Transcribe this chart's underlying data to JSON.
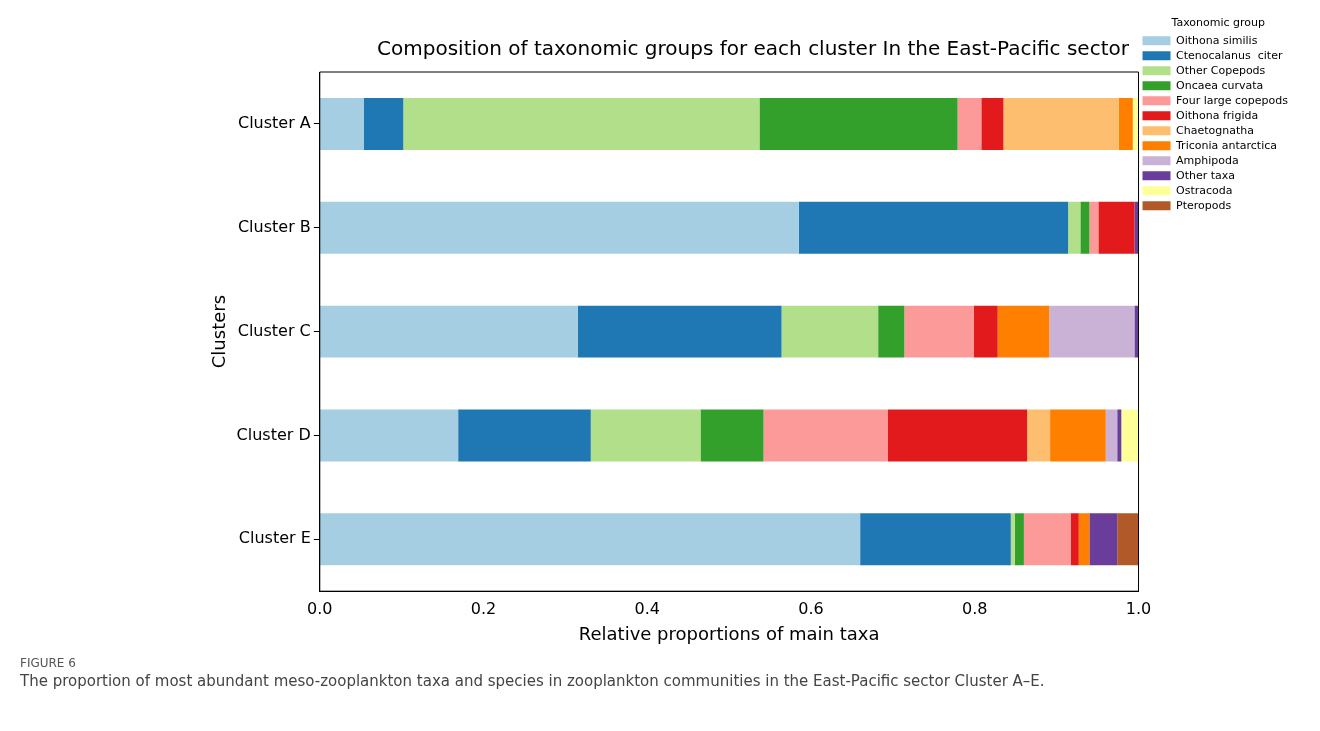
{
  "chart_data": {
    "type": "bar",
    "orientation": "horizontal",
    "stacked": true,
    "title": "Composition of taxonomic groups for each cluster In the East-Pacific sector",
    "xlabel": "Relative proportions of main taxa",
    "ylabel": "Clusters",
    "legend_title": "Taxonomic group",
    "legend": "top right",
    "grid": false,
    "categories": [
      "Cluster A",
      "Cluster B",
      "Cluster C",
      "Cluster D",
      "Cluster E"
    ],
    "xlim": [
      0,
      1
    ],
    "xticks": [
      {
        "value": 0,
        "label": "0.0"
      },
      0.2,
      0.4,
      0.6,
      0.8,
      {
        "value": 1,
        "label": "1.0"
      }
    ],
    "series": [
      {
        "name": "Oithona similis",
        "color": "#a6cee3",
        "values": [
          0.054,
          0.585,
          0.315,
          0.169,
          0.66
        ]
      },
      {
        "name": "Ctenocalanus  citer",
        "color": "#1f78b4",
        "values": [
          0.048,
          0.329,
          0.249,
          0.162,
          0.184
        ]
      },
      {
        "name": "Other Copepods",
        "color": "#b2df8a",
        "values": [
          0.435,
          0.015,
          0.118,
          0.134,
          0.005
        ]
      },
      {
        "name": "Oncaea curvata",
        "color": "#33a02c",
        "values": [
          0.242,
          0.011,
          0.032,
          0.077,
          0.011
        ]
      },
      {
        "name": "Four large copepods",
        "color": "#fb9a99",
        "values": [
          0.029,
          0.011,
          0.085,
          0.152,
          0.057
        ]
      },
      {
        "name": "Oithona frigida",
        "color": "#e31a1c",
        "values": [
          0.027,
          0.044,
          0.029,
          0.17,
          0.01
        ]
      },
      {
        "name": "Chaetognatha",
        "color": "#fdbf6f",
        "values": [
          0.141,
          0,
          0,
          0.028,
          0
        ]
      },
      {
        "name": "Triconia antarctica",
        "color": "#ff7f00",
        "values": [
          0.017,
          0,
          0.063,
          0.068,
          0.013
        ]
      },
      {
        "name": "Amphipoda",
        "color": "#cab2d6",
        "values": [
          0,
          0,
          0.104,
          0.014,
          0
        ]
      },
      {
        "name": "Other taxa",
        "color": "#6a3d9a",
        "values": [
          0,
          0.005,
          0.005,
          0.005,
          0.034
        ]
      },
      {
        "name": "Ostracoda",
        "color": "#ffff99",
        "values": [
          0.007,
          0,
          0,
          0.021,
          0
        ]
      },
      {
        "name": "Pteropods",
        "color": "#b15928",
        "values": [
          0,
          0,
          0,
          0,
          0.026
        ]
      }
    ],
    "annotations": [
      "FIGURE 6",
      "The proportion of most abundant meso-zooplankton taxa and species in zooplankton communities in the East-Pacific sector Cluster A–E."
    ]
  }
}
